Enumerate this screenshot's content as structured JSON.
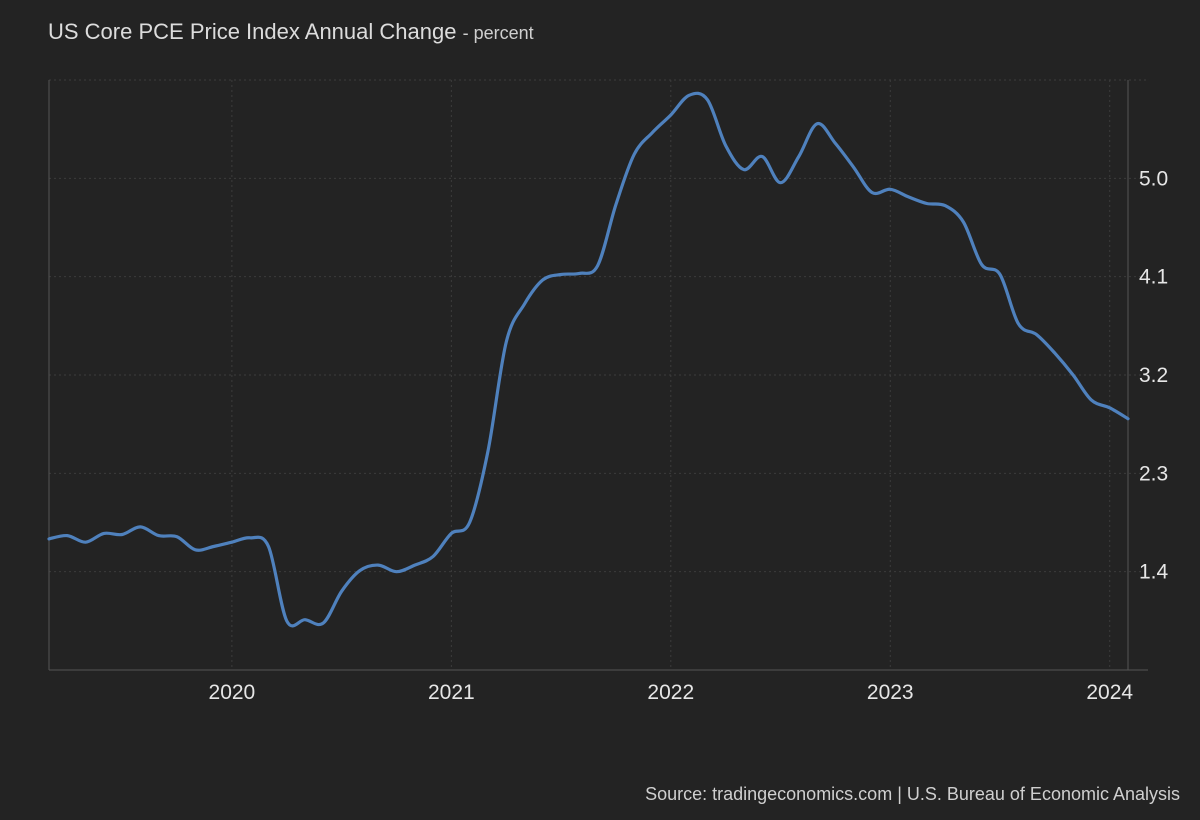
{
  "header": {
    "title": "US Core PCE Price Index Annual Change",
    "subtitle": "- percent"
  },
  "footer": {
    "source": "Source: tradingeconomics.com | U.S. Bureau of Economic Analysis"
  },
  "colors": {
    "background": "#232323",
    "line": "#4f81bd",
    "grid": "#3c3c3c",
    "text": "#e6e6e6"
  },
  "chart_data": {
    "type": "line",
    "title": "US Core PCE Price Index Annual Change",
    "ylabel": "percent",
    "x_ticks": [
      "2020",
      "2021",
      "2022",
      "2023",
      "2024"
    ],
    "y_ticks": [
      "1.4",
      "2.3",
      "3.2",
      "4.1",
      "5.0"
    ],
    "xlim": [
      "2019-03",
      "2024-02"
    ],
    "ylim": [
      0.5,
      5.9
    ],
    "grid": true,
    "series": [
      {
        "x": [
          "2019-03",
          "2019-04",
          "2019-05",
          "2019-06",
          "2019-07",
          "2019-08",
          "2019-09",
          "2019-10",
          "2019-11",
          "2019-12",
          "2020-01",
          "2020-02",
          "2020-03",
          "2020-04",
          "2020-05",
          "2020-06",
          "2020-07",
          "2020-08",
          "2020-09",
          "2020-10",
          "2020-11",
          "2020-12",
          "2021-01",
          "2021-02",
          "2021-03",
          "2021-04",
          "2021-05",
          "2021-06",
          "2021-07",
          "2021-08",
          "2021-09",
          "2021-10",
          "2021-11",
          "2021-12",
          "2022-01",
          "2022-02",
          "2022-03",
          "2022-04",
          "2022-05",
          "2022-06",
          "2022-07",
          "2022-08",
          "2022-09",
          "2022-10",
          "2022-11",
          "2022-12",
          "2023-01",
          "2023-02",
          "2023-03",
          "2023-04",
          "2023-05",
          "2023-06",
          "2023-07",
          "2023-08",
          "2023-09",
          "2023-10",
          "2023-11",
          "2023-12",
          "2024-01",
          "2024-02"
        ],
        "values": [
          1.7,
          1.73,
          1.67,
          1.75,
          1.74,
          1.81,
          1.73,
          1.72,
          1.6,
          1.63,
          1.67,
          1.71,
          1.63,
          0.95,
          0.96,
          0.93,
          1.22,
          1.41,
          1.46,
          1.4,
          1.46,
          1.54,
          1.75,
          1.85,
          2.5,
          3.5,
          3.85,
          4.07,
          4.12,
          4.13,
          4.2,
          4.76,
          5.22,
          5.42,
          5.58,
          5.76,
          5.72,
          5.3,
          5.08,
          5.2,
          4.96,
          5.2,
          5.5,
          5.32,
          5.1,
          4.87,
          4.9,
          4.83,
          4.77,
          4.75,
          4.6,
          4.21,
          4.12,
          3.67,
          3.57,
          3.4,
          3.2,
          2.97,
          2.9,
          2.8
        ]
      }
    ]
  }
}
